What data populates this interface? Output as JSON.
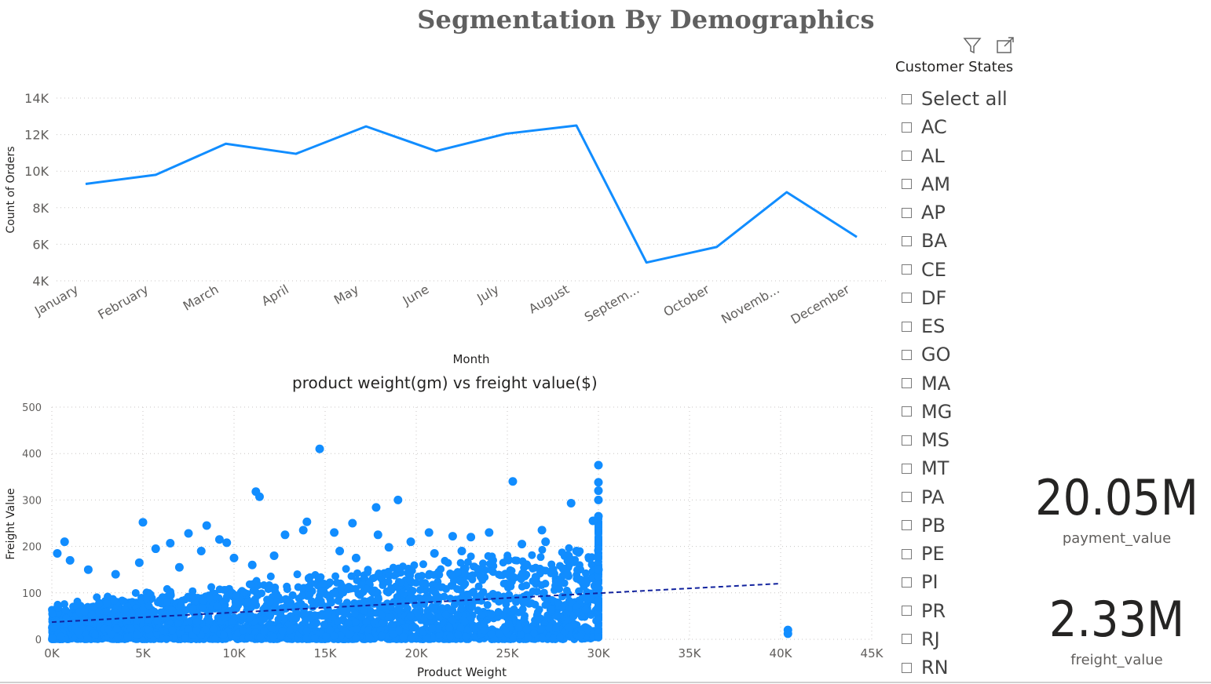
{
  "page": {
    "title": "Segmentation By Demographics"
  },
  "toolbar": {
    "filter_icon": "filter-icon",
    "focus_icon": "focus-mode-icon"
  },
  "slicer": {
    "title": "Customer States",
    "items": [
      "Select all",
      "AC",
      "AL",
      "AM",
      "AP",
      "BA",
      "CE",
      "DF",
      "ES",
      "GO",
      "MA",
      "MG",
      "MS",
      "MT",
      "PA",
      "PB",
      "PE",
      "PI",
      "PR",
      "RJ",
      "RN"
    ]
  },
  "kpis": [
    {
      "value": "20.05M",
      "label": "payment_value"
    },
    {
      "value": "2.33M",
      "label": "freight_value"
    }
  ],
  "colors": {
    "series": "#118DFF",
    "trend": "#12239E",
    "axis_text": "#605E5C",
    "grid": "#C8C6C4"
  },
  "chart_data": [
    {
      "type": "line",
      "title": "",
      "xlabel": "Month",
      "ylabel": "Count of Orders",
      "categories": [
        "January",
        "February",
        "March",
        "April",
        "May",
        "June",
        "July",
        "August",
        "Septem...",
        "October",
        "Novemb...",
        "December"
      ],
      "values": [
        9300,
        9800,
        11500,
        10950,
        12450,
        11100,
        12050,
        12500,
        5000,
        5850,
        8850,
        6400
      ],
      "ylim": [
        4000,
        14000
      ],
      "yticks": [
        "4K",
        "6K",
        "8K",
        "10K",
        "12K",
        "14K"
      ],
      "grid": true,
      "legend": "none"
    },
    {
      "type": "scatter",
      "title": "product weight(gm) vs freight value($)",
      "xlabel": "Product Weight",
      "ylabel": "Freight Value",
      "xlim": [
        0,
        45000
      ],
      "ylim": [
        0,
        500
      ],
      "xticks": [
        "0K",
        "5K",
        "10K",
        "15K",
        "20K",
        "25K",
        "30K",
        "35K",
        "40K",
        "45K"
      ],
      "yticks": [
        "0",
        "100",
        "200",
        "300",
        "400",
        "500"
      ],
      "grid": true,
      "trendline": {
        "x": [
          0,
          40000
        ],
        "y": [
          37,
          120
        ]
      },
      "points": [
        [
          14700,
          410
        ],
        [
          30000,
          375
        ],
        [
          11200,
          318
        ],
        [
          11400,
          307
        ],
        [
          19000,
          300
        ],
        [
          17800,
          284
        ],
        [
          25300,
          340
        ],
        [
          28500,
          293
        ],
        [
          5000,
          252
        ],
        [
          8500,
          245
        ],
        [
          14000,
          253
        ],
        [
          16500,
          250
        ],
        [
          15500,
          230
        ],
        [
          17900,
          225
        ],
        [
          24000,
          230
        ],
        [
          30000,
          338
        ],
        [
          30000,
          320
        ],
        [
          30000,
          300
        ],
        [
          30000,
          265
        ],
        [
          29700,
          255
        ],
        [
          700,
          210
        ],
        [
          1000,
          170
        ],
        [
          300,
          185
        ],
        [
          6500,
          207
        ],
        [
          5700,
          195
        ],
        [
          7500,
          228
        ],
        [
          9200,
          215
        ],
        [
          9600,
          208
        ],
        [
          12800,
          225
        ],
        [
          13800,
          235
        ],
        [
          19700,
          210
        ],
        [
          20700,
          230
        ],
        [
          22000,
          222
        ],
        [
          23000,
          220
        ],
        [
          25800,
          205
        ],
        [
          26900,
          235
        ],
        [
          27100,
          210
        ],
        [
          28800,
          190
        ],
        [
          29500,
          175
        ],
        [
          40400,
          20
        ],
        [
          40400,
          12
        ],
        [
          2000,
          150
        ],
        [
          3500,
          140
        ],
        [
          4800,
          165
        ],
        [
          7000,
          155
        ],
        [
          8200,
          190
        ],
        [
          10000,
          175
        ],
        [
          11000,
          160
        ],
        [
          12200,
          180
        ],
        [
          15800,
          190
        ],
        [
          16700,
          175
        ],
        [
          18500,
          198
        ],
        [
          21000,
          185
        ],
        [
          22500,
          190
        ],
        [
          24200,
          170
        ],
        [
          26000,
          160
        ],
        [
          27500,
          150
        ],
        [
          28300,
          140
        ],
        [
          29000,
          128
        ],
        [
          29800,
          115
        ],
        [
          30000,
          150
        ],
        [
          30000,
          110
        ]
      ]
    }
  ]
}
